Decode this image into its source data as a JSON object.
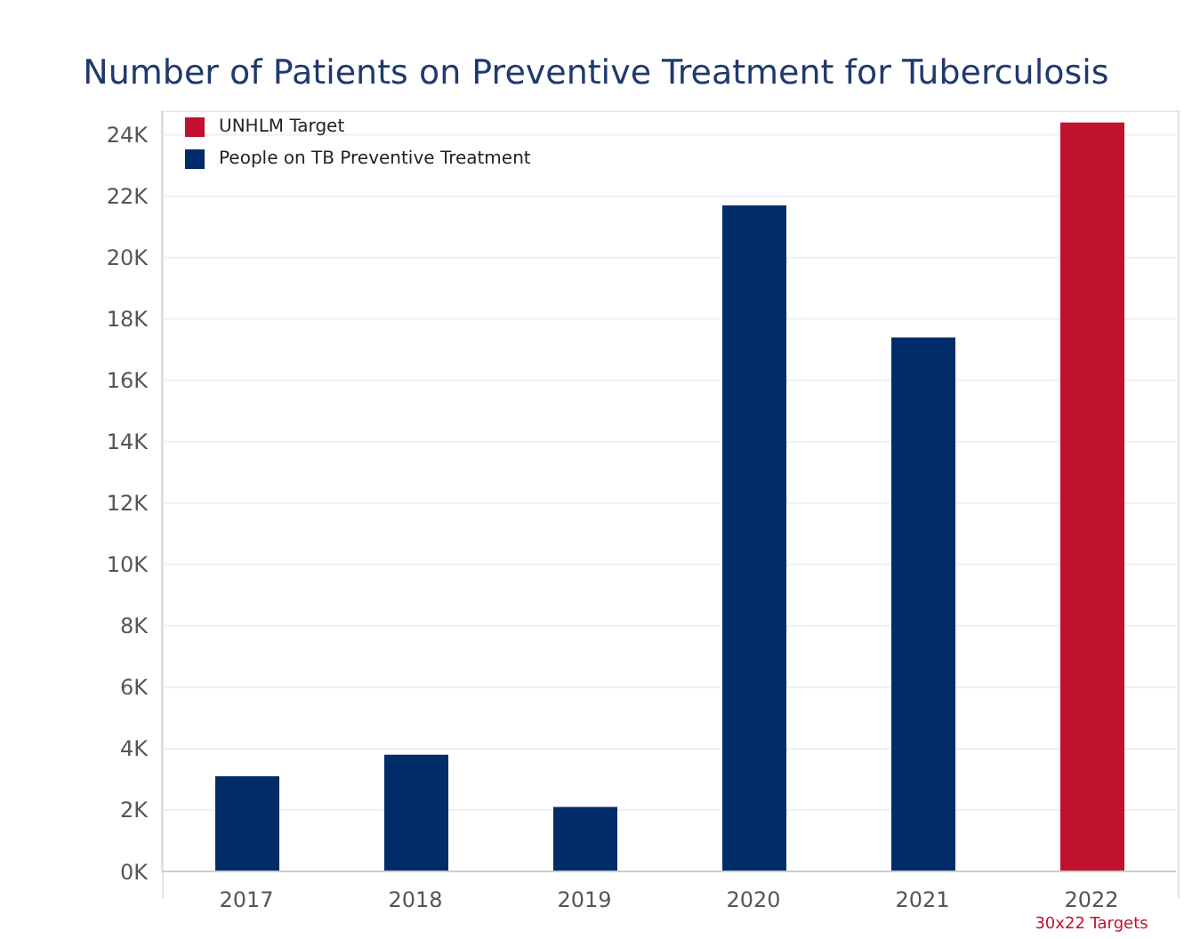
{
  "chart_data": {
    "type": "bar",
    "title": "Number of Patients on Preventive Treatment for Tuberculosis",
    "categories": [
      "2017",
      "2018",
      "2019",
      "2020",
      "2021",
      "2022"
    ],
    "series": [
      {
        "name": "UNHLM Target",
        "color": "#c0112f",
        "values": [
          null,
          null,
          null,
          null,
          null,
          24400
        ]
      },
      {
        "name": "People on TB Preventive Treatment",
        "color": "#002d6a",
        "values": [
          3100,
          3800,
          2100,
          21700,
          17400,
          null
        ]
      }
    ],
    "ylim": [
      0,
      24800
    ],
    "yticks": [
      {
        "value": 0,
        "label": "0K"
      },
      {
        "value": 2000,
        "label": "2K"
      },
      {
        "value": 4000,
        "label": "4K"
      },
      {
        "value": 6000,
        "label": "6K"
      },
      {
        "value": 8000,
        "label": "8K"
      },
      {
        "value": 10000,
        "label": "10K"
      },
      {
        "value": 12000,
        "label": "12K"
      },
      {
        "value": 14000,
        "label": "14K"
      },
      {
        "value": 16000,
        "label": "16K"
      },
      {
        "value": 18000,
        "label": "18K"
      },
      {
        "value": 20000,
        "label": "20K"
      },
      {
        "value": 22000,
        "label": "22K"
      },
      {
        "value": 24000,
        "label": "24K"
      }
    ],
    "grid": "y",
    "legend": "top left",
    "annotations": [
      "30x22 Targets"
    ]
  }
}
